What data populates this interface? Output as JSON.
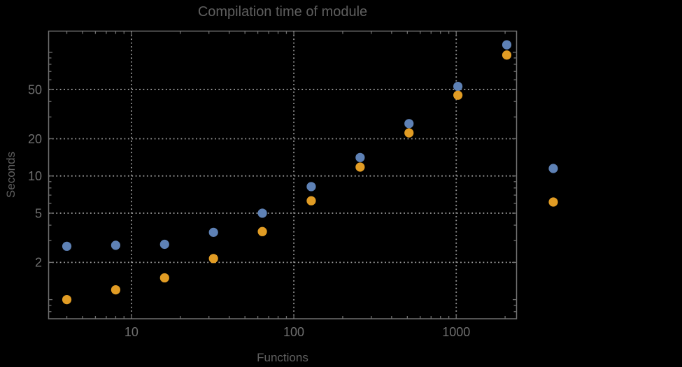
{
  "window": {
    "background": "#000000"
  },
  "chart_data": {
    "type": "scatter",
    "title": "Compilation time of module",
    "xlabel": "Functions",
    "ylabel": "Seconds",
    "xscale": "log",
    "yscale": "log",
    "xlim": [
      3.09,
      2353
    ],
    "ylim": [
      0.7,
      148.4
    ],
    "x": [
      4,
      8,
      16,
      32,
      64,
      128,
      256,
      512,
      1024,
      2048
    ],
    "series": [
      {
        "name": "blue",
        "color": "#5e81b5",
        "values": [
          2.7,
          2.75,
          2.8,
          3.5,
          5.0,
          8.2,
          14.1,
          26.5,
          53,
          115
        ]
      },
      {
        "name": "orange",
        "color": "#e19c24",
        "values": [
          1.0,
          1.2,
          1.5,
          2.15,
          3.55,
          6.3,
          11.8,
          22.3,
          45,
          95
        ]
      }
    ],
    "grid": {
      "style": "dotted",
      "x_values": [
        10,
        100,
        1000
      ],
      "y_values": [
        2,
        5,
        10,
        20,
        50
      ]
    },
    "x_ticks": {
      "labeled": [
        10,
        100,
        1000
      ],
      "labels": [
        "10",
        "100",
        "1000"
      ],
      "minor": [
        4,
        5,
        6,
        7,
        8,
        9,
        20,
        30,
        40,
        50,
        60,
        70,
        80,
        90,
        200,
        300,
        400,
        500,
        600,
        700,
        800,
        900,
        2000
      ]
    },
    "y_ticks": {
      "labeled": [
        2,
        5,
        10,
        20,
        50
      ],
      "labels": [
        "2",
        "5",
        "10",
        "20",
        "50"
      ],
      "medium": [
        1,
        100
      ],
      "minor": [
        0.8,
        0.9,
        3,
        4,
        6,
        7,
        8,
        9,
        30,
        40,
        60,
        70,
        80,
        90
      ]
    },
    "legend": {
      "position": "outside-right",
      "entries": [
        {
          "label": "",
          "color": "#5e81b5"
        },
        {
          "label": "",
          "color": "#e19c24"
        }
      ]
    },
    "colors": {
      "frame": "#6f6f6f",
      "grid": "#9a9a9a",
      "tick_label": "#6f6f6f",
      "title": "#5f5f5f",
      "axis_label": "#606060"
    }
  }
}
